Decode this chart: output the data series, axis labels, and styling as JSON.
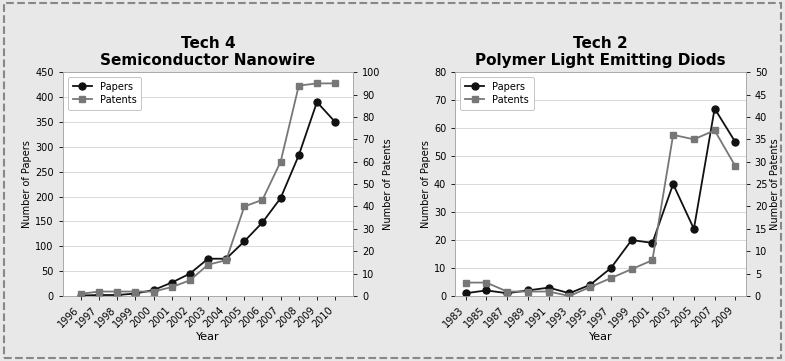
{
  "chart1": {
    "title_line1": "Tech 4",
    "title_line2": "Semiconductor Nanowire",
    "years": [
      1996,
      1997,
      1998,
      1999,
      2000,
      2001,
      2002,
      2003,
      2004,
      2005,
      2006,
      2007,
      2008,
      2009,
      2010
    ],
    "papers": [
      1,
      2,
      2,
      5,
      12,
      27,
      45,
      75,
      75,
      110,
      148,
      197,
      283,
      390,
      350
    ],
    "patents": [
      1,
      2,
      2,
      2,
      2,
      4,
      7,
      14,
      16,
      40,
      43,
      60,
      94,
      95,
      95
    ],
    "ylim_papers": [
      0,
      450
    ],
    "ylim_patents": [
      0,
      100
    ],
    "yticks_papers": [
      0,
      50,
      100,
      150,
      200,
      250,
      300,
      350,
      400,
      450
    ],
    "yticks_patents": [
      0,
      10,
      20,
      30,
      40,
      50,
      60,
      70,
      80,
      90,
      100
    ],
    "ylabel_left": "Number of Papers",
    "ylabel_right": "Number of Patents",
    "xlabel": "Year"
  },
  "chart2": {
    "title_line1": "Tech 2",
    "title_line2": "Polymer Light Emitting Diods",
    "years": [
      1983,
      1985,
      1987,
      1989,
      1991,
      1993,
      1995,
      1997,
      1999,
      2001,
      2003,
      2005,
      2007,
      2009
    ],
    "papers": [
      1,
      2,
      1,
      2,
      3,
      1,
      4,
      10,
      20,
      19,
      40,
      24,
      67,
      55
    ],
    "patents": [
      3,
      3,
      1,
      1,
      1,
      0,
      2,
      4,
      6,
      8,
      36,
      35,
      37,
      29
    ],
    "ylim_papers": [
      0,
      80
    ],
    "ylim_patents": [
      0,
      50
    ],
    "yticks_papers": [
      0,
      10,
      20,
      30,
      40,
      50,
      60,
      70,
      80
    ],
    "yticks_patents": [
      0,
      5,
      10,
      15,
      20,
      25,
      30,
      35,
      40,
      45,
      50
    ],
    "ylabel_left": "Number of Papers",
    "ylabel_right": "Number of Patents",
    "xlabel": "Year"
  },
  "paper_color": "#111111",
  "patent_color": "#777777",
  "fig_facecolor": "#e8e8e8",
  "plot_facecolor": "#ffffff",
  "grid_color": "#cccccc",
  "border_color": "#999999",
  "legend_papers": "Papers",
  "legend_patents": "Patents",
  "title_fontsize": 11,
  "label_fontsize": 7,
  "tick_fontsize": 7,
  "xlabel_fontsize": 8
}
